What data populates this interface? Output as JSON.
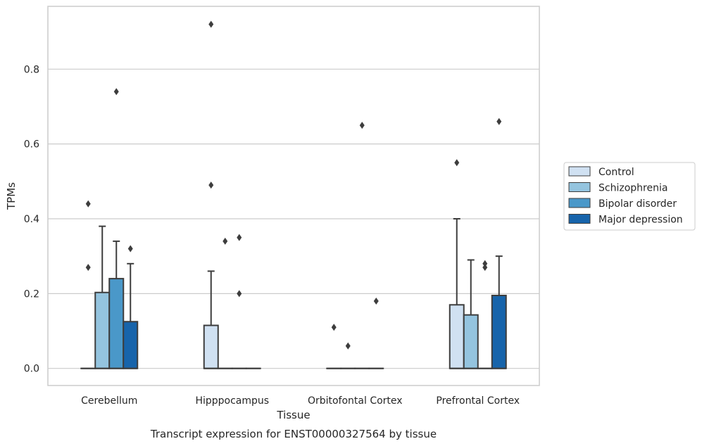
{
  "chart_data": {
    "type": "box",
    "title": "Transcript expression for ENST00000327564 by tissue",
    "xlabel": "Tissue",
    "ylabel": "TPMs",
    "ylim": [
      -0.045,
      0.97
    ],
    "yticks": [
      "0.0",
      "0.2",
      "0.4",
      "0.6",
      "0.8"
    ],
    "grid": true,
    "legend_position": "right",
    "categories": [
      "Cerebellum",
      "Hipppocampus",
      "Orbitofontal Cortex",
      "Prefrontal Cortex"
    ],
    "series": [
      {
        "name": "Control",
        "color": "#d0e1f2",
        "boxes": [
          {
            "q1": 0,
            "median": 0,
            "q3": 0,
            "whisker_low": 0,
            "whisker_high": 0,
            "outliers": [
              0.27,
              0.44
            ]
          },
          {
            "q1": 0,
            "median": 0,
            "q3": 0.115,
            "whisker_low": 0,
            "whisker_high": 0.26,
            "outliers": [
              0.49,
              0.92
            ]
          },
          {
            "q1": 0,
            "median": 0,
            "q3": 0,
            "whisker_low": 0,
            "whisker_high": 0,
            "outliers": [
              0.11
            ]
          },
          {
            "q1": 0,
            "median": 0,
            "q3": 0.17,
            "whisker_low": 0,
            "whisker_high": 0.4,
            "outliers": [
              0.55
            ]
          }
        ]
      },
      {
        "name": "Schizophrenia",
        "color": "#94c4df",
        "boxes": [
          {
            "q1": 0,
            "median": 0,
            "q3": 0.203,
            "whisker_low": 0,
            "whisker_high": 0.38,
            "outliers": []
          },
          {
            "q1": 0,
            "median": 0,
            "q3": 0,
            "whisker_low": 0,
            "whisker_high": 0,
            "outliers": [
              0.34
            ]
          },
          {
            "q1": 0,
            "median": 0,
            "q3": 0,
            "whisker_low": 0,
            "whisker_high": 0,
            "outliers": [
              0.06
            ]
          },
          {
            "q1": 0,
            "median": 0,
            "q3": 0.143,
            "whisker_low": 0,
            "whisker_high": 0.29,
            "outliers": []
          }
        ]
      },
      {
        "name": "Bipolar disorder",
        "color": "#4a98c9",
        "boxes": [
          {
            "q1": 0,
            "median": 0,
            "q3": 0.24,
            "whisker_low": 0,
            "whisker_high": 0.34,
            "outliers": [
              0.74
            ]
          },
          {
            "q1": 0,
            "median": 0,
            "q3": 0,
            "whisker_low": 0,
            "whisker_high": 0,
            "outliers": [
              0.2,
              0.35
            ]
          },
          {
            "q1": 0,
            "median": 0,
            "q3": 0,
            "whisker_low": 0,
            "whisker_high": 0,
            "outliers": [
              0.65
            ]
          },
          {
            "q1": 0,
            "median": 0,
            "q3": 0,
            "whisker_low": 0,
            "whisker_high": 0,
            "outliers": [
              0.27,
              0.28
            ]
          }
        ]
      },
      {
        "name": "Major depression",
        "color": "#1764ab",
        "boxes": [
          {
            "q1": 0,
            "median": 0,
            "q3": 0.125,
            "whisker_low": 0,
            "whisker_high": 0.28,
            "outliers": [
              0.32
            ]
          },
          {
            "q1": 0,
            "median": 0,
            "q3": 0,
            "whisker_low": 0,
            "whisker_high": 0,
            "outliers": []
          },
          {
            "q1": 0,
            "median": 0,
            "q3": 0,
            "whisker_low": 0,
            "whisker_high": 0,
            "outliers": [
              0.18
            ]
          },
          {
            "q1": 0,
            "median": 0,
            "q3": 0.195,
            "whisker_low": 0,
            "whisker_high": 0.3,
            "outliers": [
              0.66
            ]
          }
        ]
      }
    ]
  }
}
